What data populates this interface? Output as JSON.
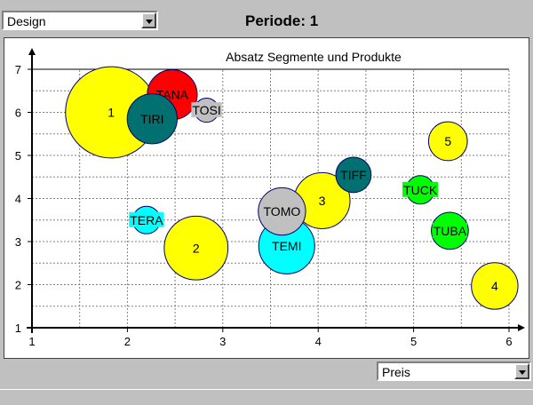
{
  "header": {
    "design_select_value": "Design",
    "period_label": "Periode: 1"
  },
  "footer": {
    "axis_select_value": "Preis"
  },
  "chart_data": {
    "type": "bubble",
    "title": "Absatz Segmente und Produkte",
    "xlim": [
      1,
      6
    ],
    "ylim": [
      1,
      7
    ],
    "xticks": [
      1,
      2,
      3,
      4,
      5,
      6
    ],
    "yticks": [
      1,
      2,
      3,
      4,
      5,
      6,
      7
    ],
    "grid": true,
    "segments": [
      {
        "label": "1",
        "x": 1.83,
        "y": 6.0,
        "r": 1.06,
        "color": "#ffff00"
      },
      {
        "label": "2",
        "x": 2.72,
        "y": 2.85,
        "r": 0.74,
        "color": "#ffff00"
      },
      {
        "label": "3",
        "x": 4.04,
        "y": 3.95,
        "r": 0.65,
        "color": "#ffff00"
      },
      {
        "label": "4",
        "x": 5.85,
        "y": 1.97,
        "r": 0.54,
        "color": "#ffff00"
      },
      {
        "label": "5",
        "x": 5.36,
        "y": 5.33,
        "r": 0.45,
        "color": "#ffff00"
      }
    ],
    "products": [
      {
        "label": "TANA",
        "x": 2.47,
        "y": 6.41,
        "r": 0.58,
        "color": "#ff0000"
      },
      {
        "label": "TIRI",
        "x": 2.26,
        "y": 5.85,
        "r": 0.58,
        "color": "#007070"
      },
      {
        "label": "TOSI",
        "x": 2.83,
        "y": 6.05,
        "r": 0.28,
        "color": "#c0c0c0"
      },
      {
        "label": "TERA",
        "x": 2.2,
        "y": 3.5,
        "r": 0.32,
        "color": "#00ffff"
      },
      {
        "label": "TEMI",
        "x": 3.67,
        "y": 2.9,
        "r": 0.65,
        "color": "#00ffff"
      },
      {
        "label": "TOMO",
        "x": 3.62,
        "y": 3.7,
        "r": 0.55,
        "color": "#c0c0c0"
      },
      {
        "label": "TIFF",
        "x": 4.37,
        "y": 4.55,
        "r": 0.41,
        "color": "#007070"
      },
      {
        "label": "TUCK",
        "x": 5.07,
        "y": 4.2,
        "r": 0.33,
        "color": "#00ff00"
      },
      {
        "label": "TUBA",
        "x": 5.38,
        "y": 3.25,
        "r": 0.43,
        "color": "#00ff00"
      }
    ]
  }
}
